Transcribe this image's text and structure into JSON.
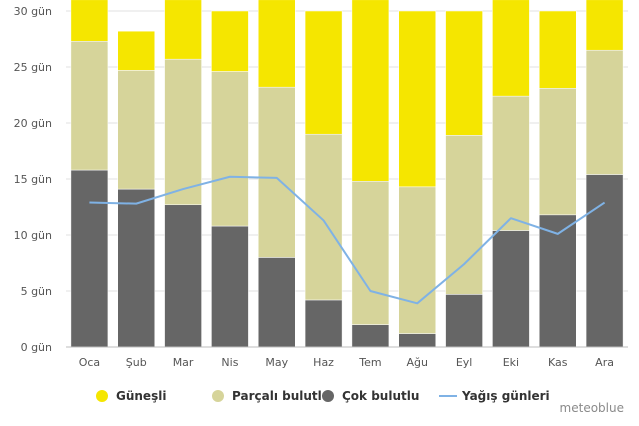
{
  "chart_data": {
    "type": "bar",
    "stacked": true,
    "categories": [
      "Oca",
      "Şub",
      "Mar",
      "Nis",
      "May",
      "Haz",
      "Tem",
      "Ağu",
      "Eyl",
      "Eki",
      "Kas",
      "Ara"
    ],
    "series": [
      {
        "name": "Güneşli",
        "color": "#f5e600",
        "values": [
          3.7,
          3.5,
          5.3,
          5.4,
          7.8,
          11.0,
          16.2,
          15.7,
          11.1,
          8.6,
          6.9,
          4.5
        ]
      },
      {
        "name": "Parçalı bulutlu",
        "color": "#d6d49a",
        "values": [
          11.5,
          10.6,
          13.0,
          13.8,
          15.2,
          14.8,
          12.8,
          13.1,
          14.2,
          12.0,
          11.3,
          11.1
        ]
      },
      {
        "name": "Çok bulutlu",
        "color": "#666666",
        "values": [
          15.8,
          14.1,
          12.7,
          10.8,
          8.0,
          4.2,
          2.0,
          1.2,
          4.7,
          10.4,
          11.8,
          15.4
        ]
      }
    ],
    "line": {
      "name": "Yağış günleri",
      "color": "#7fb2e5",
      "values": [
        12.9,
        12.8,
        14.1,
        15.2,
        15.1,
        11.3,
        5.0,
        3.9,
        7.4,
        11.5,
        10.1,
        12.9
      ]
    },
    "ylim": [
      0,
      30
    ],
    "yticks": [
      0,
      5,
      10,
      15,
      20,
      25,
      30
    ],
    "ytick_labels": [
      "0 gün",
      "5 gün",
      "10 gün",
      "15 gün",
      "20 gün",
      "25 gün",
      "30 gün"
    ],
    "legend_position": "bottom",
    "grid": true
  },
  "credit": "meteoblue"
}
